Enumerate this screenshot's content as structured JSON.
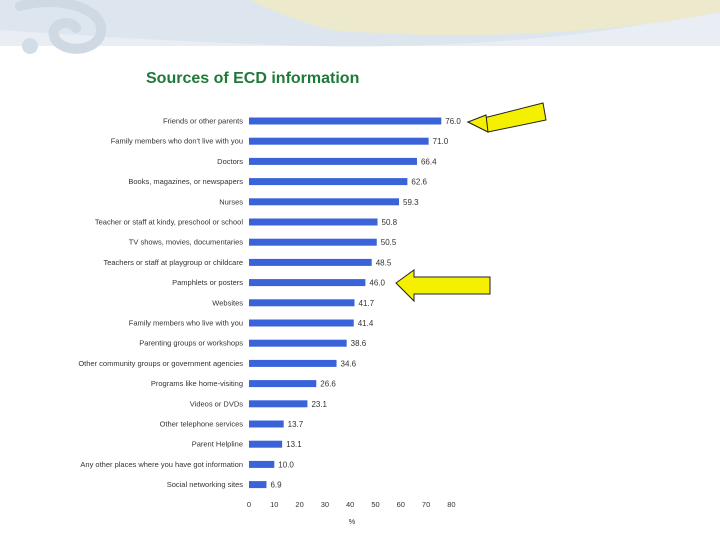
{
  "slide": {
    "title": "Sources of ECD information",
    "bar_color": "#3b63d9",
    "title_color": "#1f7a3a",
    "arrow_color": "#f5f000"
  },
  "chart_data": {
    "type": "bar",
    "orientation": "horizontal",
    "title": "Sources of ECD information",
    "xlabel": "%",
    "ylabel": "",
    "xlim": [
      0,
      80
    ],
    "xticks": [
      0,
      10,
      20,
      30,
      40,
      50,
      60,
      70,
      80
    ],
    "grid": false,
    "categories": [
      "Friends or other parents",
      "Family members who don't live with you",
      "Doctors",
      "Books, magazines, or newspapers",
      "Nurses",
      "Teacher or staff at kindy, preschool or school",
      "TV shows, movies, documentaries",
      "Teachers or staff at playgroup or childcare",
      "Pamphlets or posters",
      "Websites",
      "Family members who live with you",
      "Parenting groups or workshops",
      "Other community groups or government agencies",
      "Programs like home-visiting",
      "Videos or DVDs",
      "Other telephone services",
      "Parent Helpline",
      "Any other places where you have got information",
      "Social networking sites"
    ],
    "values": [
      76.0,
      71.0,
      66.4,
      62.6,
      59.3,
      50.8,
      50.5,
      48.5,
      46.0,
      41.7,
      41.4,
      38.6,
      34.6,
      26.6,
      23.1,
      13.7,
      13.1,
      10.0,
      6.9
    ],
    "value_labels": [
      "76.0",
      "71.0",
      "66.4",
      "62.6",
      "59.3",
      "50.8",
      "50.5",
      "48.5",
      "46.0",
      "41.7",
      "41.4",
      "38.6",
      "34.6",
      "26.6",
      "23.1",
      "13.7",
      "13.1",
      "10.0",
      "6.9"
    ],
    "highlighted_categories": [
      "Friends or other parents",
      "Pamphlets or posters"
    ]
  }
}
